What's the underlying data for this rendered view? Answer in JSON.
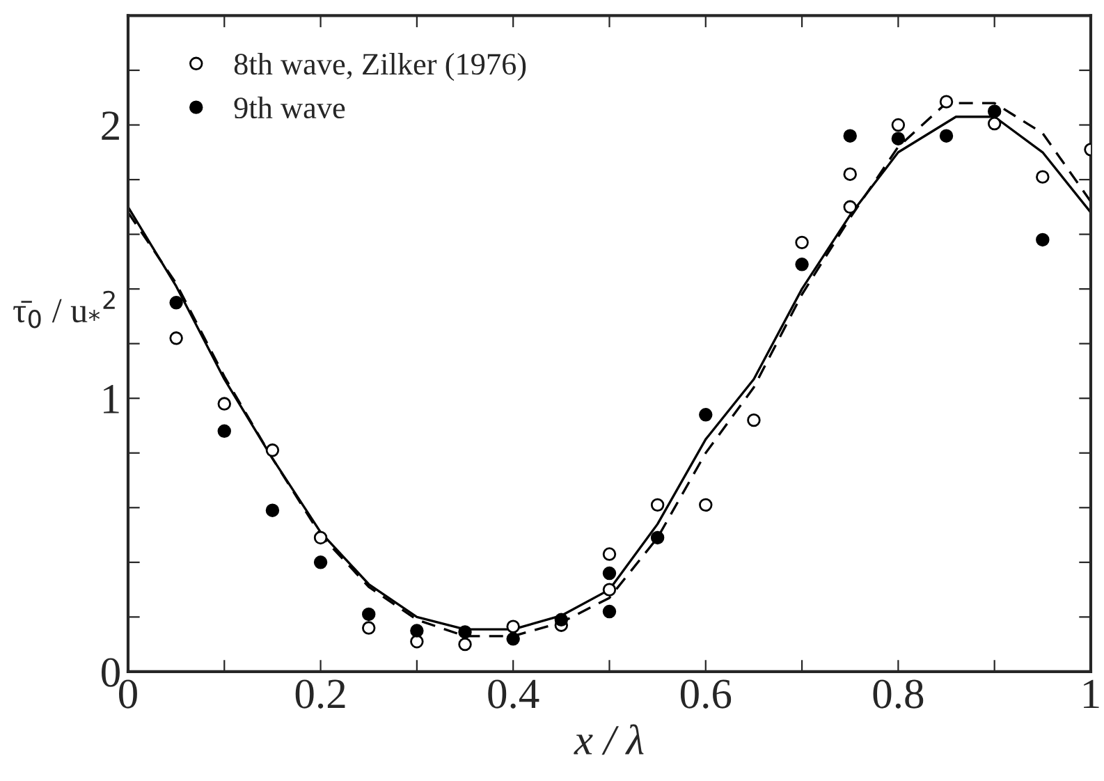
{
  "chart_data": {
    "type": "scatter",
    "xlabel": "x / λ",
    "ylabel": "τ̄$_{0}$ / u$_{*}$$^{2}$",
    "xlim": [
      0,
      1
    ],
    "ylim": [
      0,
      2.4
    ],
    "xticks": [
      0,
      {
        "value": 0.1,
        "label": null
      },
      0.2,
      {
        "value": 0.3,
        "label": null
      },
      0.4,
      {
        "value": 0.5,
        "label": null
      },
      0.6,
      {
        "value": 0.7,
        "label": null
      },
      0.8,
      {
        "value": 0.9,
        "label": null
      },
      1
    ],
    "yticks": [
      0,
      {
        "value": 0.2,
        "label": null
      },
      {
        "value": 0.4,
        "label": null
      },
      {
        "value": 0.6,
        "label": null
      },
      {
        "value": 0.8,
        "label": null
      },
      1,
      {
        "value": 1.2,
        "label": null
      },
      {
        "value": 1.4,
        "label": null
      },
      {
        "value": 1.6,
        "label": null
      },
      {
        "value": 1.8,
        "label": null
      },
      2,
      {
        "value": 2.2,
        "label": null
      }
    ],
    "grid": false,
    "legend": "top left",
    "series": [
      {
        "name": "8th wave, Zilker (1976)",
        "marker": "circle",
        "color": "#ffffff",
        "x": [
          0.05,
          0.1,
          0.15,
          0.2,
          0.25,
          0.3,
          0.35,
          0.4,
          0.45,
          0.5,
          0.5,
          0.55,
          0.6,
          0.65,
          0.7,
          0.75,
          0.75,
          0.8,
          0.85,
          0.9,
          0.95,
          1.0
        ],
        "values": [
          1.22,
          0.98,
          0.81,
          0.49,
          0.16,
          0.11,
          0.1,
          0.165,
          0.17,
          0.43,
          0.3,
          0.61,
          0.61,
          0.92,
          1.57,
          1.82,
          1.7,
          2.0,
          2.085,
          2.005,
          1.81,
          1.91
        ]
      },
      {
        "name": "9th wave",
        "marker": "circle",
        "color": "#000000",
        "x": [
          0.05,
          0.1,
          0.15,
          0.2,
          0.25,
          0.3,
          0.35,
          0.4,
          0.45,
          0.5,
          0.5,
          0.55,
          0.6,
          0.7,
          0.75,
          0.8,
          0.85,
          0.9,
          0.95
        ],
        "values": [
          1.35,
          0.88,
          0.59,
          0.4,
          0.21,
          0.15,
          0.145,
          0.12,
          0.19,
          0.36,
          0.22,
          0.49,
          0.94,
          1.49,
          1.96,
          1.95,
          1.96,
          2.05,
          1.58
        ]
      },
      {
        "type": "line",
        "line_style": "solid",
        "marker": "none",
        "color": "#000000",
        "x": [
          0,
          0.05,
          0.1,
          0.15,
          0.2,
          0.25,
          0.3,
          0.35,
          0.4,
          0.45,
          0.5,
          0.55,
          0.6,
          0.65,
          0.7,
          0.75,
          0.8,
          0.86,
          0.9,
          0.95,
          1.0
        ],
        "values": [
          1.7,
          1.41,
          1.07,
          0.78,
          0.51,
          0.32,
          0.2,
          0.155,
          0.155,
          0.205,
          0.3,
          0.54,
          0.85,
          1.07,
          1.4,
          1.67,
          1.9,
          2.03,
          2.03,
          1.9,
          1.68
        ]
      },
      {
        "type": "line",
        "line_style": "dashed",
        "marker": "none",
        "color": "#000000",
        "x": [
          0,
          0.05,
          0.1,
          0.15,
          0.2,
          0.25,
          0.3,
          0.35,
          0.4,
          0.45,
          0.5,
          0.55,
          0.6,
          0.65,
          0.7,
          0.75,
          0.8,
          0.85,
          0.9,
          0.95,
          1.0
        ],
        "values": [
          1.68,
          1.42,
          1.08,
          0.78,
          0.5,
          0.31,
          0.19,
          0.13,
          0.13,
          0.18,
          0.27,
          0.49,
          0.8,
          1.04,
          1.38,
          1.66,
          1.92,
          2.08,
          2.08,
          1.97,
          1.72
        ]
      }
    ]
  }
}
